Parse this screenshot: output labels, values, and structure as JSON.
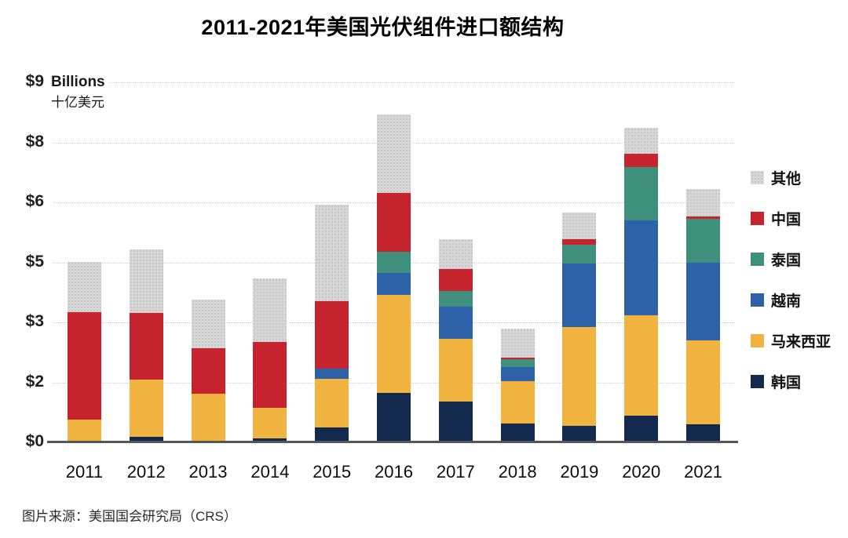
{
  "title": "2011-2021年美国光伏组件进口额结构",
  "unit": {
    "en": "Billions",
    "zh": "十亿美元"
  },
  "source": "图片来源：美国国会研究局（CRS）",
  "y_axis": {
    "tick_labels": [
      "$9",
      "$8",
      "$6",
      "$5",
      "$3",
      "$2",
      "$0"
    ],
    "tick_values": [
      9,
      7.5,
      6,
      4.5,
      3,
      1.5,
      0
    ]
  },
  "legend": {
    "position": "right",
    "items": [
      {
        "label": "其他",
        "color": "#d7d7d7",
        "textured": true
      },
      {
        "label": "中国",
        "color": "#c5242f",
        "textured": false
      },
      {
        "label": "泰国",
        "color": "#3e8f7b",
        "textured": false
      },
      {
        "label": "越南",
        "color": "#2d61a8",
        "textured": false
      },
      {
        "label": "马来西亚",
        "color": "#f2b440",
        "textured": false
      },
      {
        "label": "韩国",
        "color": "#14294e",
        "textured": false
      }
    ]
  },
  "chart_data": {
    "type": "bar",
    "stacked": true,
    "title": "2011-2021年美国光伏组件进口额结构",
    "categories": [
      "2011",
      "2012",
      "2013",
      "2014",
      "2015",
      "2016",
      "2017",
      "2018",
      "2019",
      "2020",
      "2021"
    ],
    "series": [
      {
        "name": "韩国",
        "color": "#14294e",
        "textured": false,
        "values": [
          0.03,
          0.14,
          0.03,
          0.1,
          0.37,
          1.24,
          1.02,
          0.47,
          0.41,
          0.67,
          0.45
        ]
      },
      {
        "name": "马来西亚",
        "color": "#f2b440",
        "textured": false,
        "values": [
          0.54,
          1.43,
          1.19,
          0.76,
          1.22,
          2.45,
          1.57,
          1.06,
          2.47,
          2.51,
          2.1
        ]
      },
      {
        "name": "越南",
        "color": "#2d61a8",
        "textured": false,
        "values": [
          0,
          0,
          0,
          0,
          0.25,
          0.55,
          0.8,
          0.35,
          1.59,
          2.37,
          1.94
        ]
      },
      {
        "name": "泰国",
        "color": "#3e8f7b",
        "textured": false,
        "values": [
          0,
          0,
          0,
          0,
          0,
          0.52,
          0.39,
          0.2,
          0.47,
          1.33,
          1.1
        ]
      },
      {
        "name": "中国",
        "color": "#c5242f",
        "textured": false,
        "values": [
          2.68,
          1.67,
          1.13,
          1.65,
          1.69,
          1.48,
          0.55,
          0.04,
          0.14,
          0.34,
          0.06
        ]
      },
      {
        "name": "其他",
        "color": "#d7d7d7",
        "textured": true,
        "values": [
          1.26,
          1.58,
          1.22,
          1.59,
          2.42,
          1.96,
          0.75,
          0.72,
          0.67,
          0.64,
          0.68
        ]
      }
    ],
    "ylim": [
      0,
      9
    ],
    "ytick_step": 1.5,
    "grid": true,
    "legend_position": "right",
    "totals": [
      4.51,
      4.82,
      3.57,
      4.1,
      5.95,
      8.2,
      5.08,
      2.84,
      5.75,
      7.86,
      6.33
    ]
  }
}
